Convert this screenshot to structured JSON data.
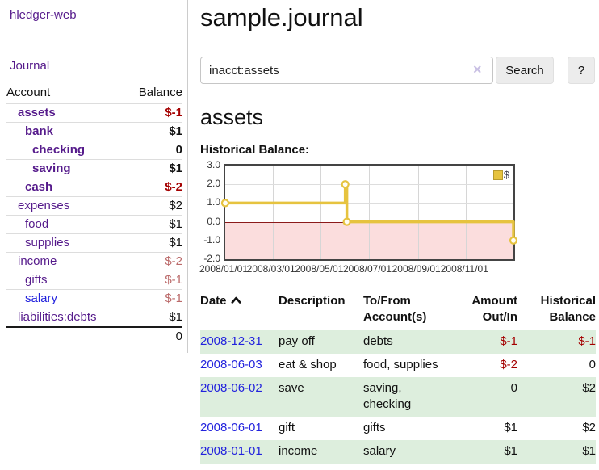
{
  "app": {
    "brand": "hledger-web",
    "nav_journal": "Journal"
  },
  "sidebar": {
    "col_account": "Account",
    "col_balance": "Balance",
    "accounts": [
      {
        "name": "assets",
        "depth": 0,
        "bold": true,
        "link": "purple",
        "balance": "$-1",
        "balance_style": "neg-strong"
      },
      {
        "name": "bank",
        "depth": 1,
        "bold": true,
        "link": "purple",
        "balance": "$1",
        "balance_style": "pos-strong"
      },
      {
        "name": "checking",
        "depth": 2,
        "bold": true,
        "link": "purple",
        "balance": "0",
        "balance_style": "pos-strong"
      },
      {
        "name": "saving",
        "depth": 2,
        "bold": true,
        "link": "purple",
        "balance": "$1",
        "balance_style": "pos-strong"
      },
      {
        "name": "cash",
        "depth": 1,
        "bold": true,
        "link": "purple",
        "balance": "$-2",
        "balance_style": "neg-strong"
      },
      {
        "name": "expenses",
        "depth": 0,
        "bold": false,
        "link": "purple",
        "balance": "$2",
        "balance_style": "plain"
      },
      {
        "name": "food",
        "depth": 1,
        "bold": false,
        "link": "purple",
        "balance": "$1",
        "balance_style": "plain"
      },
      {
        "name": "supplies",
        "depth": 1,
        "bold": false,
        "link": "purple",
        "balance": "$1",
        "balance_style": "plain"
      },
      {
        "name": "income",
        "depth": 0,
        "bold": false,
        "link": "purple",
        "balance": "$-2",
        "balance_style": "neg-muted"
      },
      {
        "name": "gifts",
        "depth": 1,
        "bold": false,
        "link": "purple",
        "balance": "$-1",
        "balance_style": "neg-muted"
      },
      {
        "name": "salary",
        "depth": 1,
        "bold": false,
        "link": "blue",
        "balance": "$-1",
        "balance_style": "neg-muted"
      },
      {
        "name": "liabilities:debts",
        "depth": 0,
        "bold": false,
        "link": "purple",
        "balance": "$1",
        "balance_style": "plain"
      }
    ],
    "total": "0"
  },
  "main": {
    "title": "sample.journal",
    "search": {
      "query": "inacct:assets",
      "clear_icon": "×",
      "button_label": "Search",
      "help_label": "?"
    },
    "account_heading": "assets",
    "chart_heading": "Historical Balance:"
  },
  "chart_data": {
    "type": "line",
    "title": "Historical Balance",
    "step": true,
    "x_range": [
      "2008-01-01",
      "2008-12-31"
    ],
    "y_range": [
      -2,
      3
    ],
    "y_ticks": [
      "3.0",
      "2.0",
      "1.0",
      "0.0",
      "-1.0",
      "-2.0"
    ],
    "x_ticks": [
      "2008/01/01",
      "2008/03/01",
      "2008/05/01",
      "2008/07/01",
      "2008/09/01",
      "2008/11/01"
    ],
    "series": [
      {
        "name": "$",
        "color": "#e6c33f",
        "points": [
          [
            "2008-01-01",
            1
          ],
          [
            "2008-06-01",
            2
          ],
          [
            "2008-06-03",
            0
          ],
          [
            "2008-12-31",
            -1
          ]
        ]
      }
    ],
    "legend": {
      "label": "$",
      "position": "top-right",
      "swatch_color": "#e6c33f"
    },
    "negative_region_color": "#fbdddd",
    "zero_line_color": "#8b1a1a",
    "grid": true
  },
  "register": {
    "columns": [
      {
        "label": "Date",
        "align": "left",
        "sorted": "asc"
      },
      {
        "label": "Description",
        "align": "left"
      },
      {
        "label": "To/From\nAccount(s)",
        "align": "left"
      },
      {
        "label": "Amount\nOut/In",
        "align": "right"
      },
      {
        "label": "Historical\nBalance",
        "align": "right"
      }
    ],
    "rows": [
      {
        "date": "2008-12-31",
        "description": "pay off",
        "accounts": "debts",
        "amount": "$-1",
        "amount_neg": true,
        "balance": "$-1",
        "balance_neg": true
      },
      {
        "date": "2008-06-03",
        "description": "eat & shop",
        "accounts": "food, supplies",
        "amount": "$-2",
        "amount_neg": true,
        "balance": "0",
        "balance_neg": false
      },
      {
        "date": "2008-06-02",
        "description": "save",
        "accounts": "saving,\nchecking\n",
        "amount": "0",
        "amount_neg": false,
        "balance": "$2",
        "balance_neg": false
      },
      {
        "date": "2008-06-01",
        "description": "gift",
        "accounts": "gifts",
        "amount": "$1",
        "amount_neg": false,
        "balance": "$2",
        "balance_neg": false
      },
      {
        "date": "2008-01-01",
        "description": "income",
        "accounts": "salary",
        "amount": "$1",
        "amount_neg": false,
        "balance": "$1",
        "balance_neg": false
      }
    ]
  }
}
